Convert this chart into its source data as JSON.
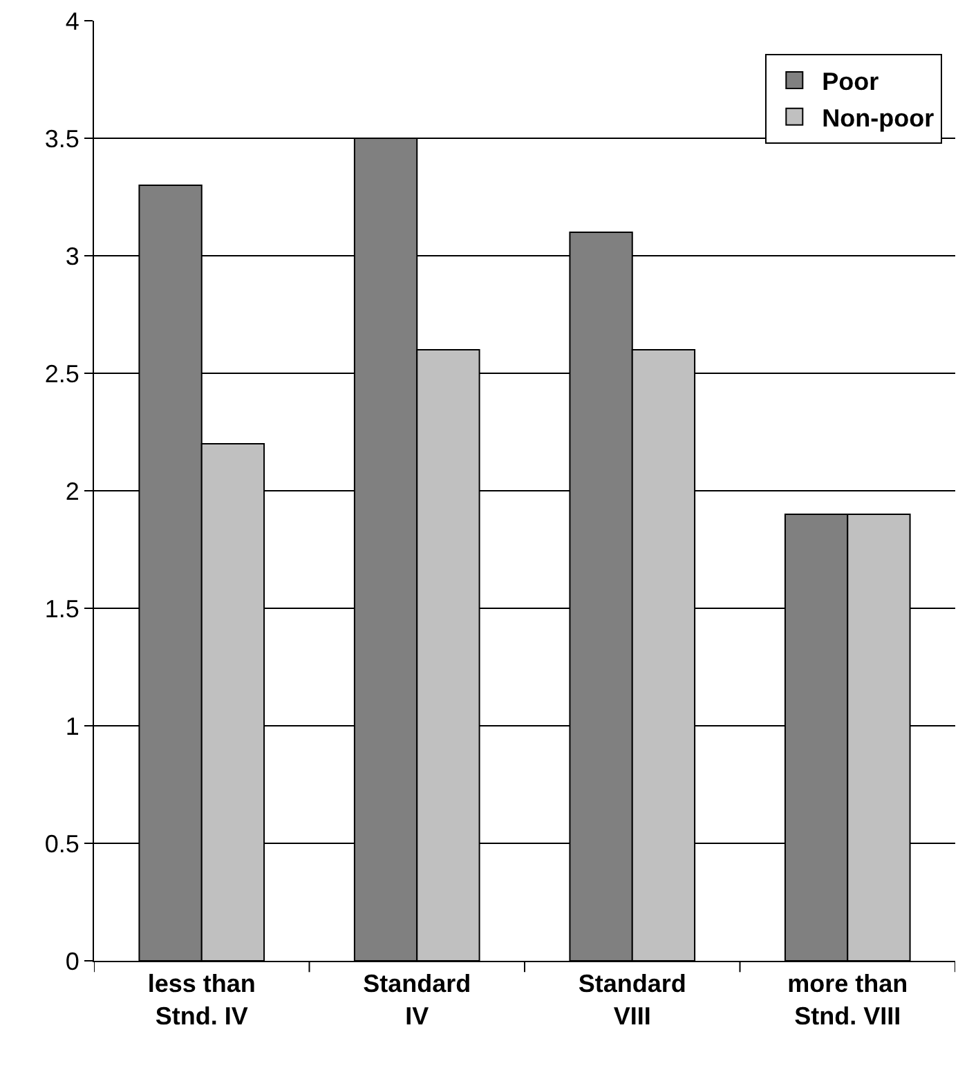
{
  "chart_data": {
    "type": "bar",
    "categories": [
      "less than\nStnd. IV",
      "Standard\nIV",
      "Standard\nVIII",
      "more than\nStnd. VIII"
    ],
    "series": [
      {
        "name": "Poor",
        "color": "#808080",
        "values": [
          3.3,
          3.5,
          3.1,
          1.9
        ]
      },
      {
        "name": "Non-poor",
        "color": "#c0c0c0",
        "values": [
          2.2,
          2.6,
          2.6,
          1.9
        ]
      }
    ],
    "ylim": [
      0,
      4
    ],
    "yticks": [
      0,
      0.5,
      1,
      1.5,
      2,
      2.5,
      3,
      3.5,
      4
    ],
    "grid": "y",
    "legend": "top right"
  }
}
